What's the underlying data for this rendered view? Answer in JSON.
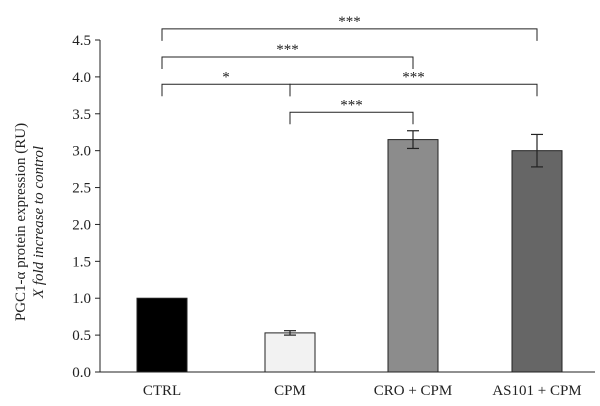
{
  "chart_data": {
    "type": "bar",
    "ylabel_lines": [
      "PGC1-α protein expression (RU)",
      "X fold increase to control"
    ],
    "categories": [
      "CTRL",
      "CPM",
      "CRO + CPM",
      "AS101 + CPM"
    ],
    "values": [
      1.0,
      0.53,
      3.15,
      3.0
    ],
    "errors": [
      0.0,
      0.03,
      0.12,
      0.22
    ],
    "bar_colors": [
      "#000000",
      "#f2f2f2",
      "#8c8c8c",
      "#666666"
    ],
    "ylim": [
      0,
      4.5
    ],
    "yticks": [
      "0.0",
      "0.5",
      "1.0",
      "1.5",
      "2.0",
      "2.5",
      "3.0",
      "3.5",
      "4.0",
      "4.5"
    ],
    "significance": [
      {
        "from": 0,
        "to": 3,
        "label": "***",
        "y": 4.65
      },
      {
        "from": 0,
        "to": 2,
        "label": "***",
        "y": 4.27
      },
      {
        "from": 0,
        "to": 1,
        "label": "*",
        "y": 3.9
      },
      {
        "from": 1,
        "to": 3,
        "label": "***",
        "y": 3.9
      },
      {
        "from": 1,
        "to": 2,
        "label": "***",
        "y": 3.52
      }
    ]
  }
}
